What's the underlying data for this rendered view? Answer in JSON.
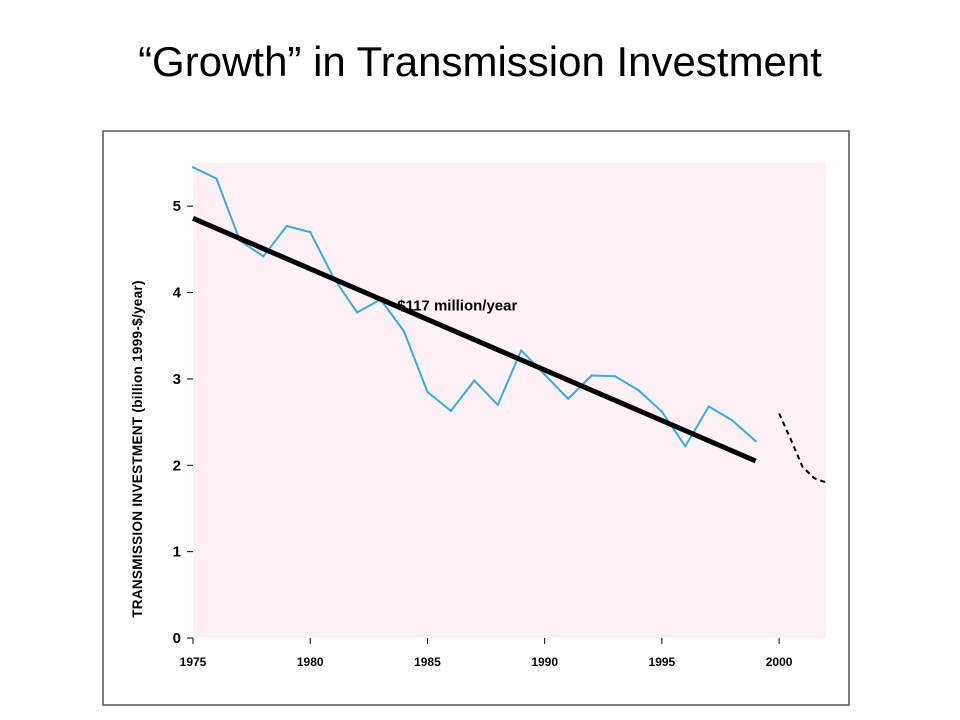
{
  "slide": {
    "title": "“Growth” in Transmission Investment"
  },
  "colors": {
    "plot_background": "#fdf1f6",
    "actual_series": "#3fa9d8",
    "trend_line": "#000000",
    "frame_border": "#555555"
  },
  "chart_data": {
    "type": "line",
    "title": "",
    "xlabel": "",
    "ylabel": "TRANSMISSION INVESTMENT (billion 1999-$/year)",
    "xlim": [
      1975,
      2002
    ],
    "ylim": [
      0,
      5.5
    ],
    "x_ticks": [
      "1975",
      "1980",
      "1985",
      "1990",
      "1995",
      "2000"
    ],
    "y_ticks": [
      "0",
      "1",
      "2",
      "3",
      "4",
      "5"
    ],
    "grid": false,
    "legend": "none",
    "series": [
      {
        "style": "solid-thin",
        "x": [
          1975,
          1976,
          1977,
          1978,
          1979,
          1980,
          1981,
          1982,
          1983,
          1984,
          1985,
          1986,
          1987,
          1988,
          1989,
          1990,
          1991,
          1992,
          1993,
          1994,
          1995,
          1996,
          1997,
          1998,
          1999
        ],
        "y": [
          5.45,
          5.32,
          4.6,
          4.42,
          4.77,
          4.7,
          4.17,
          3.77,
          3.92,
          3.55,
          2.85,
          2.63,
          2.98,
          2.7,
          3.33,
          3.05,
          2.77,
          3.04,
          3.03,
          2.87,
          2.62,
          2.22,
          2.68,
          2.52,
          2.28
        ]
      },
      {
        "style": "trend-thick",
        "x": [
          1975,
          1999
        ],
        "y": [
          4.86,
          2.05
        ]
      },
      {
        "style": "dashed",
        "x": [
          2000,
          2000.5,
          2001,
          2001.5,
          2002
        ],
        "y": [
          2.6,
          2.3,
          1.98,
          1.85,
          1.8
        ]
      }
    ],
    "annotations": [
      {
        "text": "-$117 million/year",
        "x": 1983.5,
        "y": 3.85
      }
    ]
  }
}
